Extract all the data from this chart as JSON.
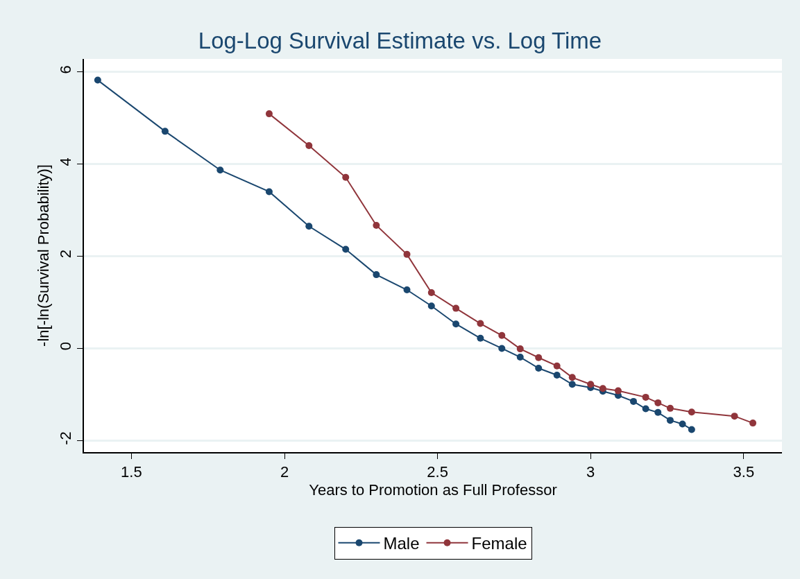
{
  "chart_data": {
    "type": "line",
    "title": "Log-Log Survival Estimate vs. Log Time",
    "xlabel": "Years to Promotion as Full Professor",
    "ylabel": "-ln[-ln(Survival Probability)]",
    "xlim": [
      1.345,
      3.625
    ],
    "xticks": [
      1.5,
      2,
      2.5,
      3,
      3.5
    ],
    "ylim": [
      -2.25,
      6.28
    ],
    "yticks": [
      -2,
      0,
      2,
      4,
      6
    ],
    "grid": "y",
    "legend": "bottom",
    "marker": "circle",
    "line_style": "solid",
    "series": [
      {
        "name": "Male",
        "color": "#1a476f",
        "x": [
          1.39,
          1.61,
          1.79,
          1.95,
          2.08,
          2.2,
          2.3,
          2.4,
          2.48,
          2.56,
          2.64,
          2.71,
          2.77,
          2.83,
          2.89,
          2.94,
          3.0,
          3.04,
          3.09,
          3.14,
          3.18,
          3.22,
          3.26,
          3.3,
          3.33
        ],
        "values": [
          5.82,
          4.71,
          3.87,
          3.4,
          2.65,
          2.15,
          1.6,
          1.27,
          0.92,
          0.53,
          0.22,
          0.0,
          -0.19,
          -0.43,
          -0.58,
          -0.78,
          -0.85,
          -0.93,
          -1.02,
          -1.15,
          -1.31,
          -1.39,
          -1.56,
          -1.64,
          -1.76
        ]
      },
      {
        "name": "Female",
        "color": "#90353b",
        "x": [
          1.95,
          2.08,
          2.2,
          2.3,
          2.4,
          2.48,
          2.56,
          2.64,
          2.71,
          2.77,
          2.83,
          2.89,
          2.94,
          3.0,
          3.04,
          3.09,
          3.18,
          3.22,
          3.26,
          3.33,
          3.47,
          3.53
        ],
        "values": [
          5.09,
          4.4,
          3.71,
          2.67,
          2.04,
          1.21,
          0.87,
          0.54,
          0.28,
          -0.01,
          -0.2,
          -0.38,
          -0.63,
          -0.78,
          -0.87,
          -0.92,
          -1.06,
          -1.18,
          -1.3,
          -1.38,
          -1.47,
          -1.62
        ]
      }
    ]
  }
}
